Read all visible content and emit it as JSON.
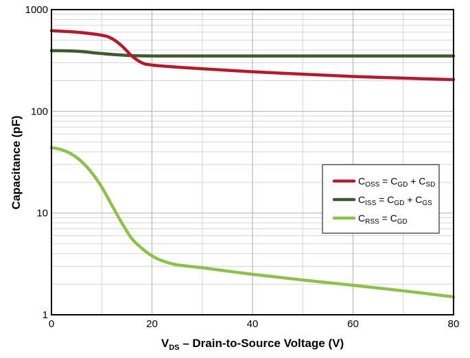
{
  "chart_data": {
    "type": "line",
    "xlabel": {
      "main": "V",
      "sub": "DS",
      "rest": " – Drain-to-Source Voltage (V)"
    },
    "ylabel": "Capacitance (pF)",
    "x_ticks": [
      0,
      20,
      40,
      60,
      80
    ],
    "y_ticks": [
      1,
      10,
      100,
      1000
    ],
    "xlim": [
      0,
      80
    ],
    "ylim": [
      1,
      1000
    ],
    "y_scale": "log",
    "grid": true,
    "legend_position": "right",
    "series": [
      {
        "name": "COSS = CGD + CSD",
        "legend": [
          {
            "t": "C"
          },
          {
            "t": "OSS",
            "sub": true
          },
          {
            "t": " = C"
          },
          {
            "t": "GD",
            "sub": true
          },
          {
            "t": " + C"
          },
          {
            "t": "SD",
            "sub": true
          }
        ],
        "color": "#b31b2c",
        "x": [
          0,
          5,
          10,
          12,
          14,
          16,
          18,
          20,
          25,
          30,
          40,
          50,
          60,
          70,
          80
        ],
        "y": [
          620,
          600,
          560,
          520,
          440,
          350,
          300,
          285,
          272,
          262,
          245,
          232,
          220,
          212,
          205
        ]
      },
      {
        "name": "CISS = CGD + CGS",
        "legend": [
          {
            "t": "C"
          },
          {
            "t": "ISS",
            "sub": true
          },
          {
            "t": " = C"
          },
          {
            "t": "GD",
            "sub": true
          },
          {
            "t": " + C"
          },
          {
            "t": "GS",
            "sub": true
          }
        ],
        "color": "#3d5a2a",
        "x": [
          0,
          5,
          10,
          15,
          20,
          30,
          40,
          60,
          80
        ],
        "y": [
          395,
          390,
          370,
          355,
          350,
          350,
          350,
          350,
          350
        ]
      },
      {
        "name": "CRSS = CGD",
        "legend": [
          {
            "t": "C"
          },
          {
            "t": "RSS",
            "sub": true
          },
          {
            "t": " = C"
          },
          {
            "t": "GD",
            "sub": true
          }
        ],
        "color": "#8dc14b",
        "x": [
          0,
          2,
          4,
          6,
          8,
          10,
          12,
          14,
          16,
          18,
          20,
          22,
          25,
          30,
          40,
          50,
          60,
          70,
          80
        ],
        "y": [
          44,
          42,
          38,
          32,
          25,
          18,
          12,
          8,
          5.6,
          4.5,
          3.8,
          3.4,
          3.1,
          2.9,
          2.5,
          2.2,
          1.95,
          1.72,
          1.5
        ]
      }
    ]
  }
}
